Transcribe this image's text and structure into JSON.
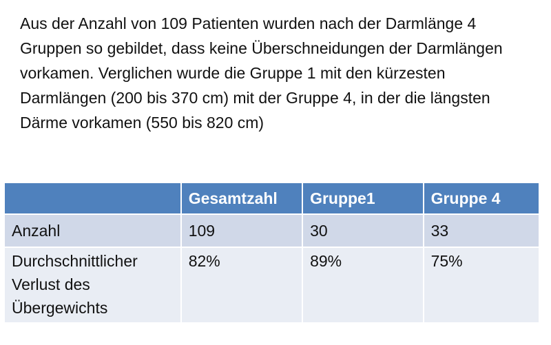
{
  "intro_text": "Aus der Anzahl von 109 Patienten wurden nach der Darmlänge 4 Gruppen so gebildet, dass keine Überschneidungen der Darmlängen vorkamen. Verglichen wurde die Gruppe 1 mit den kürzesten Darmlängen (200 bis 370 cm) mit der Gruppe 4, in der die längsten Därme vorkamen (550 bis 820 cm)",
  "table": {
    "headers": [
      "",
      "Gesamtzahl",
      "Gruppe1",
      "Gruppe 4"
    ],
    "rows": [
      {
        "label": "Anzahl",
        "values": [
          "109",
          "30",
          "33"
        ]
      },
      {
        "label": "Durchschnittlicher Verlust des Übergewichts",
        "values": [
          "82%",
          "89%",
          "75%"
        ]
      }
    ]
  },
  "colors": {
    "header_bg": "#4f81bd",
    "row_odd_bg": "#d0d8e8",
    "row_even_bg": "#e9edf4",
    "header_text": "#ffffff",
    "body_text": "#111111"
  }
}
